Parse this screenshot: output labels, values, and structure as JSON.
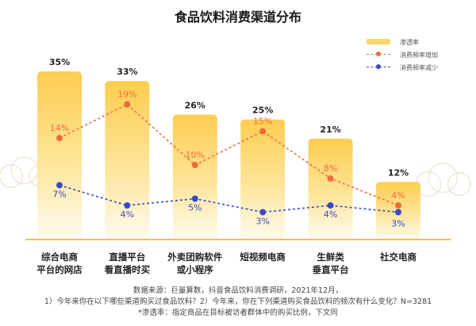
{
  "chart_data": {
    "type": "bar",
    "title": "食品饮料消费渠道分布",
    "categories": [
      [
        "综合电商",
        "平台的网店"
      ],
      [
        "直播平台",
        "看直播时买"
      ],
      [
        "外卖团购软件",
        "或小程序"
      ],
      [
        "短视频电商"
      ],
      [
        "生鲜类",
        "垂直平台"
      ],
      [
        "社交电商"
      ]
    ],
    "series": [
      {
        "name": "渗透率",
        "kind": "bar",
        "values": [
          35,
          33,
          26,
          25,
          21,
          12
        ],
        "labels": [
          "35%",
          "33%",
          "26%",
          "25%",
          "21%",
          "12%"
        ],
        "color": "#fdcd4f"
      },
      {
        "name": "消费频率增加",
        "kind": "line",
        "values": [
          14,
          19,
          10,
          15,
          8,
          4
        ],
        "labels": [
          "14%",
          "19%",
          "10%",
          "15%",
          "8%",
          "4%"
        ],
        "color": "#f06a3b"
      },
      {
        "name": "消费频率减少",
        "kind": "line",
        "values": [
          7,
          4,
          5,
          3,
          4,
          3
        ],
        "labels": [
          "7%",
          "4%",
          "5%",
          "3%",
          "4%",
          "3%"
        ],
        "color": "#3949c5"
      }
    ],
    "ylim": [
      0,
      35
    ],
    "legend_position": "top-right",
    "grid": false
  },
  "footer": {
    "line1": "数据来源：巨量算数，抖音食品饮料消费调研，2021年12月，",
    "line2": "1）今年来你在以下哪些渠道购买过食品饮料？2）今年来，你在下列渠道购买食品饮料的频次有什么变化？N=3281",
    "line3": "*渗透率：指定商品在目标被访者群体中的购买比例，下文同"
  }
}
